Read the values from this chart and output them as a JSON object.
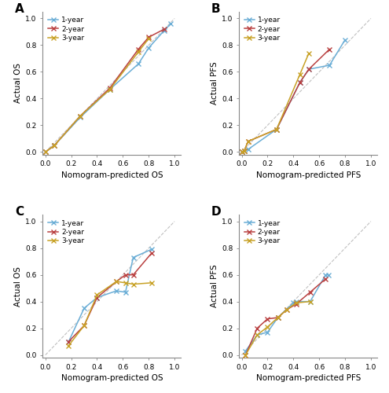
{
  "panels": [
    {
      "label": "A",
      "xlabel": "Nomogram-predicted OS",
      "ylabel": "Actual OS",
      "lines": [
        {
          "name": "1-year",
          "color": "#6baed6",
          "x": [
            0.0,
            0.07,
            0.27,
            0.5,
            0.72,
            0.8,
            0.92,
            0.97
          ],
          "y": [
            0.0,
            0.05,
            0.26,
            0.47,
            0.66,
            0.78,
            0.91,
            0.96
          ]
        },
        {
          "name": "2-year",
          "color": "#b94040",
          "x": [
            0.0,
            0.07,
            0.27,
            0.5,
            0.72,
            0.8,
            0.92
          ],
          "y": [
            0.0,
            0.05,
            0.27,
            0.48,
            0.77,
            0.86,
            0.92
          ]
        },
        {
          "name": "3-year",
          "color": "#c8a227",
          "x": [
            0.0,
            0.07,
            0.27,
            0.5,
            0.72,
            0.8
          ],
          "y": [
            0.0,
            0.05,
            0.27,
            0.47,
            0.75,
            0.85
          ]
        }
      ]
    },
    {
      "label": "B",
      "xlabel": "Nomogram-predicted PFS",
      "ylabel": "Actual PFS",
      "lines": [
        {
          "name": "1-year",
          "color": "#6baed6",
          "x": [
            0.0,
            0.02,
            0.05,
            0.27,
            0.45,
            0.52,
            0.68,
            0.8
          ],
          "y": [
            0.0,
            0.01,
            0.02,
            0.17,
            0.52,
            0.62,
            0.65,
            0.84
          ]
        },
        {
          "name": "2-year",
          "color": "#b94040",
          "x": [
            0.0,
            0.02,
            0.05,
            0.27,
            0.45,
            0.52,
            0.68
          ],
          "y": [
            0.0,
            0.01,
            0.08,
            0.17,
            0.52,
            0.62,
            0.77
          ]
        },
        {
          "name": "3-year",
          "color": "#c8a227",
          "x": [
            0.0,
            0.02,
            0.05,
            0.27,
            0.45,
            0.52
          ],
          "y": [
            0.0,
            0.01,
            0.08,
            0.17,
            0.58,
            0.74
          ]
        }
      ]
    },
    {
      "label": "C",
      "xlabel": "Nomogram-predicted OS",
      "ylabel": "Actual OS",
      "lines": [
        {
          "name": "1-year",
          "color": "#6baed6",
          "x": [
            0.18,
            0.3,
            0.4,
            0.55,
            0.62,
            0.68,
            0.82
          ],
          "y": [
            0.1,
            0.35,
            0.43,
            0.48,
            0.47,
            0.73,
            0.79
          ]
        },
        {
          "name": "2-year",
          "color": "#b94040",
          "x": [
            0.18,
            0.3,
            0.4,
            0.55,
            0.62,
            0.68,
            0.82
          ],
          "y": [
            0.1,
            0.22,
            0.43,
            0.55,
            0.6,
            0.6,
            0.76
          ]
        },
        {
          "name": "3-year",
          "color": "#c8a227",
          "x": [
            0.18,
            0.3,
            0.4,
            0.55,
            0.62,
            0.68,
            0.82
          ],
          "y": [
            0.07,
            0.22,
            0.45,
            0.55,
            0.54,
            0.53,
            0.54
          ]
        }
      ]
    },
    {
      "label": "D",
      "xlabel": "Nomogram-predicted PFS",
      "ylabel": "Actual PFS",
      "lines": [
        {
          "name": "1-year",
          "color": "#6baed6",
          "x": [
            0.03,
            0.12,
            0.2,
            0.28,
            0.4,
            0.42,
            0.53,
            0.65,
            0.67
          ],
          "y": [
            0.03,
            0.15,
            0.17,
            0.28,
            0.39,
            0.4,
            0.4,
            0.6,
            0.6
          ]
        },
        {
          "name": "2-year",
          "color": "#b94040",
          "x": [
            0.03,
            0.12,
            0.2,
            0.28,
            0.35,
            0.42,
            0.53,
            0.65
          ],
          "y": [
            0.0,
            0.2,
            0.27,
            0.28,
            0.34,
            0.38,
            0.47,
            0.57
          ]
        },
        {
          "name": "3-year",
          "color": "#c8a227",
          "x": [
            0.03,
            0.12,
            0.2,
            0.28,
            0.35,
            0.42,
            0.53
          ],
          "y": [
            0.0,
            0.15,
            0.21,
            0.28,
            0.34,
            0.39,
            0.4
          ]
        }
      ]
    }
  ],
  "diag_color": "#c0c0c0",
  "marker": "x",
  "markersize": 4.0,
  "markeredgewidth": 1.0,
  "linewidth": 1.1,
  "legend_fontsize": 6.5,
  "axis_label_fontsize": 7.5,
  "tick_fontsize": 6.5,
  "panel_label_fontsize": 11,
  "background_color": "#ffffff",
  "spine_color": "#888888"
}
